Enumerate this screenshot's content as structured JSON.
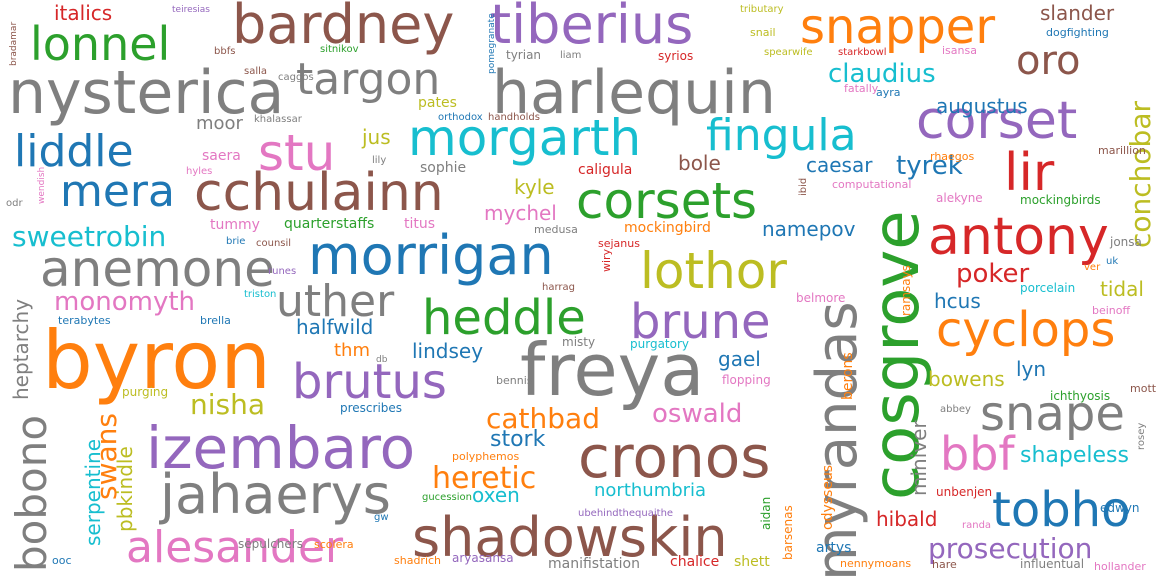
{
  "words": [
    {
      "text": "byron",
      "color": "#ff7f0e"
    },
    {
      "text": "freya",
      "color": "#7f7f7f"
    },
    {
      "text": "cosgrove",
      "color": "#2ca02c"
    },
    {
      "text": "nysterica",
      "color": "#7f7f7f"
    },
    {
      "text": "harlequin",
      "color": "#7f7f7f"
    },
    {
      "text": "morrigan",
      "color": "#1f77b4"
    },
    {
      "text": "bardney",
      "color": "#8c564b"
    },
    {
      "text": "tiberius",
      "color": "#9467bd"
    },
    {
      "text": "snapper",
      "color": "#ff7f0e"
    },
    {
      "text": "cchulainn",
      "color": "#8c564b"
    },
    {
      "text": "morgarth",
      "color": "#17becf"
    },
    {
      "text": "izembaro",
      "color": "#9467bd"
    },
    {
      "text": "jahaerys",
      "color": "#7f7f7f"
    },
    {
      "text": "cronos",
      "color": "#8c564b"
    },
    {
      "text": "shadowskin",
      "color": "#8c564b"
    },
    {
      "text": "myrandas",
      "color": "#7f7f7f"
    },
    {
      "text": "anemone",
      "color": "#7f7f7f"
    },
    {
      "text": "antony",
      "color": "#d62728"
    },
    {
      "text": "cyclops",
      "color": "#ff7f0e"
    },
    {
      "text": "corsets",
      "color": "#2ca02c"
    },
    {
      "text": "lothor",
      "color": "#bcbd22"
    },
    {
      "text": "alesander",
      "color": "#e377c2"
    },
    {
      "text": "lonnel",
      "color": "#2ca02c"
    },
    {
      "text": "targon",
      "color": "#7f7f7f"
    },
    {
      "text": "corset",
      "color": "#9467bd"
    },
    {
      "text": "heddle",
      "color": "#2ca02c"
    },
    {
      "text": "brune",
      "color": "#9467bd"
    },
    {
      "text": "brutus",
      "color": "#9467bd"
    },
    {
      "text": "uther",
      "color": "#7f7f7f"
    },
    {
      "text": "fingula",
      "color": "#17becf"
    },
    {
      "text": "liddle",
      "color": "#1f77b4"
    },
    {
      "text": "mera",
      "color": "#1f77b4"
    },
    {
      "text": "stu",
      "color": "#e377c2"
    },
    {
      "text": "lir",
      "color": "#d62728"
    },
    {
      "text": "snape",
      "color": "#7f7f7f"
    },
    {
      "text": "tobho",
      "color": "#1f77b4"
    },
    {
      "text": "bbf",
      "color": "#e377c2"
    },
    {
      "text": "bobono",
      "color": "#7f7f7f"
    },
    {
      "text": "oro",
      "color": "#8c564b"
    },
    {
      "text": "prosecution",
      "color": "#9467bd"
    },
    {
      "text": "conchobar",
      "color": "#bcbd22"
    },
    {
      "text": "heretic",
      "color": "#ff7f0e"
    },
    {
      "text": "cathbad",
      "color": "#ff7f0e"
    },
    {
      "text": "sweetrobin",
      "color": "#17becf"
    },
    {
      "text": "oswald",
      "color": "#e377c2"
    },
    {
      "text": "claudius",
      "color": "#17becf"
    },
    {
      "text": "tyrek",
      "color": "#1f77b4"
    },
    {
      "text": "swans",
      "color": "#ff7f0e"
    },
    {
      "text": "nisha",
      "color": "#bcbd22"
    },
    {
      "text": "monomyth",
      "color": "#e377c2"
    },
    {
      "text": "poker",
      "color": "#d62728"
    },
    {
      "text": "shapeless",
      "color": "#17becf"
    },
    {
      "text": "stork",
      "color": "#1f77b4"
    },
    {
      "text": "slander",
      "color": "#8c564b"
    },
    {
      "text": "italics",
      "color": "#d62728"
    },
    {
      "text": "augustus",
      "color": "#1f77b4"
    },
    {
      "text": "miniver",
      "color": "#7f7f7f"
    },
    {
      "text": "heptarchy",
      "color": "#7f7f7f"
    },
    {
      "text": "serpentine",
      "color": "#17becf"
    },
    {
      "text": "pbkindle",
      "color": "#bcbd22"
    },
    {
      "text": "hibald",
      "color": "#d62728"
    },
    {
      "text": "tidal",
      "color": "#bcbd22"
    },
    {
      "text": "halfwild",
      "color": "#1f77b4"
    },
    {
      "text": "lindsey",
      "color": "#1f77b4"
    },
    {
      "text": "northumbria",
      "color": "#17becf"
    },
    {
      "text": "mychel",
      "color": "#e377c2"
    },
    {
      "text": "namepov",
      "color": "#1f77b4"
    },
    {
      "text": "caesar",
      "color": "#1f77b4"
    },
    {
      "text": "bole",
      "color": "#8c564b"
    },
    {
      "text": "kyle",
      "color": "#bcbd22"
    },
    {
      "text": "jus",
      "color": "#bcbd22"
    },
    {
      "text": "gael",
      "color": "#1f77b4"
    },
    {
      "text": "bowens",
      "color": "#bcbd22"
    },
    {
      "text": "lyn",
      "color": "#1f77b4"
    },
    {
      "text": "hcus",
      "color": "#1f77b4"
    },
    {
      "text": "oxen",
      "color": "#17becf"
    },
    {
      "text": "thm",
      "color": "#ff7f0e"
    },
    {
      "text": "moor",
      "color": "#7f7f7f"
    },
    {
      "text": "pates",
      "color": "#bcbd22"
    },
    {
      "text": "sepulchers",
      "color": "#7f7f7f"
    },
    {
      "text": "manifistation",
      "color": "#7f7f7f"
    },
    {
      "text": "chalice",
      "color": "#d62728"
    },
    {
      "text": "shett",
      "color": "#bcbd22"
    },
    {
      "text": "artys",
      "color": "#1f77b4"
    },
    {
      "text": "sophie",
      "color": "#7f7f7f"
    },
    {
      "text": "caligula",
      "color": "#d62728"
    },
    {
      "text": "mockingbird",
      "color": "#ff7f0e"
    },
    {
      "text": "saera",
      "color": "#e377c2"
    },
    {
      "text": "tummy",
      "color": "#e377c2"
    },
    {
      "text": "quarterstaffs",
      "color": "#2ca02c"
    },
    {
      "text": "titus",
      "color": "#e377c2"
    },
    {
      "text": "medusa",
      "color": "#7f7f7f"
    },
    {
      "text": "sejanus",
      "color": "#d62728"
    },
    {
      "text": "odysseus",
      "color": "#ff7f0e"
    },
    {
      "text": "berons",
      "color": "#ff7f0e"
    },
    {
      "text": "barsenas",
      "color": "#ff7f0e"
    },
    {
      "text": "aidan",
      "color": "#2ca02c"
    },
    {
      "text": "edwyn",
      "color": "#1f77b4"
    },
    {
      "text": "unbenjen",
      "color": "#d62728"
    },
    {
      "text": "ichthyosis",
      "color": "#2ca02c"
    },
    {
      "text": "mott",
      "color": "#8c564b"
    },
    {
      "text": "alekyne",
      "color": "#e377c2"
    },
    {
      "text": "mockingbirds",
      "color": "#2ca02c"
    },
    {
      "text": "jonsa",
      "color": "#7f7f7f"
    },
    {
      "text": "porcelain",
      "color": "#17becf"
    },
    {
      "text": "beinoff",
      "color": "#e377c2"
    },
    {
      "text": "marillion",
      "color": "#8c564b"
    },
    {
      "text": "rhaegos",
      "color": "#ff7f0e"
    },
    {
      "text": "computational",
      "color": "#e377c2"
    },
    {
      "text": "ramsays",
      "color": "#ff7f0e"
    },
    {
      "text": "belmore",
      "color": "#e377c2"
    },
    {
      "text": "purgatory",
      "color": "#17becf"
    },
    {
      "text": "misty",
      "color": "#7f7f7f"
    },
    {
      "text": "flopping",
      "color": "#e377c2"
    },
    {
      "text": "bennis",
      "color": "#7f7f7f"
    },
    {
      "text": "prescribes",
      "color": "#1f77b4"
    },
    {
      "text": "purging",
      "color": "#bcbd22"
    },
    {
      "text": "polyphemos",
      "color": "#ff7f0e"
    },
    {
      "text": "gucession",
      "color": "#2ca02c"
    },
    {
      "text": "ubehindthequaithe",
      "color": "#9467bd"
    },
    {
      "text": "scolera",
      "color": "#ff7f0e"
    },
    {
      "text": "gw",
      "color": "#1f77b4"
    },
    {
      "text": "shadrich",
      "color": "#ff7f0e"
    },
    {
      "text": "aryasansa",
      "color": "#9467bd"
    },
    {
      "text": "nennymoans",
      "color": "#ff7f0e"
    },
    {
      "text": "hare",
      "color": "#8c564b"
    },
    {
      "text": "influentual",
      "color": "#7f7f7f"
    },
    {
      "text": "hollander",
      "color": "#e377c2"
    },
    {
      "text": "randa",
      "color": "#e377c2"
    },
    {
      "text": "abbey",
      "color": "#7f7f7f"
    },
    {
      "text": "rosey",
      "color": "#7f7f7f"
    },
    {
      "text": "ooc",
      "color": "#1f77b4"
    },
    {
      "text": "brie",
      "color": "#1f77b4"
    },
    {
      "text": "counsil",
      "color": "#8c564b"
    },
    {
      "text": "runes",
      "color": "#9467bd"
    },
    {
      "text": "triston",
      "color": "#17becf"
    },
    {
      "text": "brella",
      "color": "#1f77b4"
    },
    {
      "text": "terabytes",
      "color": "#1f77b4"
    },
    {
      "text": "db",
      "color": "#7f7f7f"
    },
    {
      "text": "harrag",
      "color": "#8c564b"
    },
    {
      "text": "wiry",
      "color": "#d62728"
    },
    {
      "text": "ibid",
      "color": "#8c564b"
    },
    {
      "text": "hyles",
      "color": "#e377c2"
    },
    {
      "text": "wendish",
      "color": "#e377c2"
    },
    {
      "text": "odr",
      "color": "#7f7f7f"
    },
    {
      "text": "lily",
      "color": "#7f7f7f"
    },
    {
      "text": "khalassar",
      "color": "#7f7f7f"
    },
    {
      "text": "orthodox",
      "color": "#1f77b4"
    },
    {
      "text": "handholds",
      "color": "#8c564b"
    },
    {
      "text": "caggos",
      "color": "#7f7f7f"
    },
    {
      "text": "salla",
      "color": "#8c564b"
    },
    {
      "text": "sitnikov",
      "color": "#2ca02c"
    },
    {
      "text": "bbfs",
      "color": "#8c564b"
    },
    {
      "text": "teiresias",
      "color": "#9467bd"
    },
    {
      "text": "bradamar",
      "color": "#8c564b"
    },
    {
      "text": "pomegranate",
      "color": "#1f77b4"
    },
    {
      "text": "tyrian",
      "color": "#7f7f7f"
    },
    {
      "text": "liam",
      "color": "#7f7f7f"
    },
    {
      "text": "syrios",
      "color": "#d62728"
    },
    {
      "text": "tributary",
      "color": "#bcbd22"
    },
    {
      "text": "snail",
      "color": "#bcbd22"
    },
    {
      "text": "spearwife",
      "color": "#bcbd22"
    },
    {
      "text": "starkbowl",
      "color": "#d62728"
    },
    {
      "text": "isansa",
      "color": "#e377c2"
    },
    {
      "text": "dogfighting",
      "color": "#1f77b4"
    },
    {
      "text": "fatally",
      "color": "#e377c2"
    },
    {
      "text": "ayra",
      "color": "#1f77b4"
    },
    {
      "text": "ver",
      "color": "#ff7f0e"
    },
    {
      "text": "uk",
      "color": "#1f77b4"
    }
  ]
}
